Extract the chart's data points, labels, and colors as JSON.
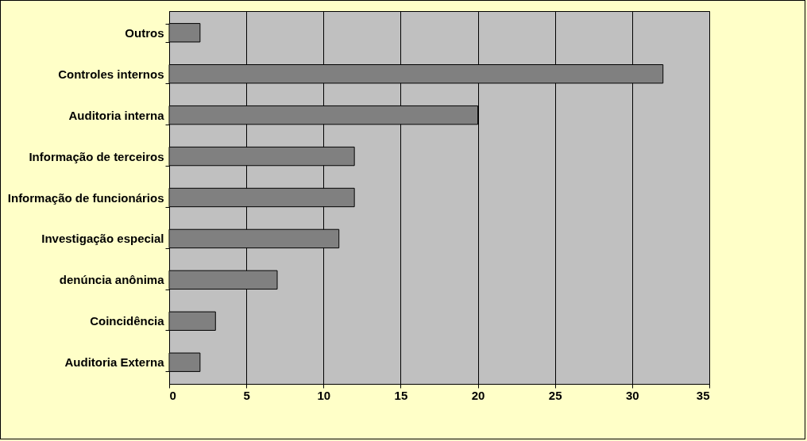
{
  "chart_data": {
    "type": "bar",
    "orientation": "horizontal",
    "categories": [
      "Outros",
      "Controles internos ",
      "Auditoria interna",
      "Informação de terceiros",
      "Informação de funcionários",
      "Investigação especial",
      "denúncia anônima",
      "Coincidência",
      "Auditoria Externa"
    ],
    "values": [
      2,
      32,
      20,
      12,
      12,
      11,
      7,
      3,
      2
    ],
    "color": "#808080",
    "xlim": [
      0,
      35
    ],
    "xticks": [
      0,
      5,
      10,
      15,
      20,
      25,
      30,
      35
    ],
    "grid": "x"
  }
}
